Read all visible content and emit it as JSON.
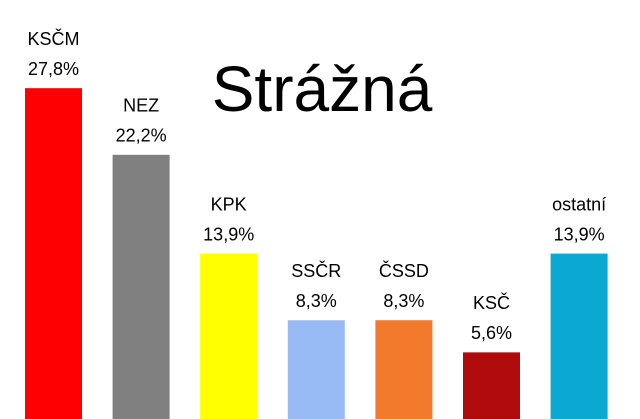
{
  "chart_data": {
    "type": "bar",
    "title": "Strážná",
    "categories": [
      "KSČM",
      "NEZ",
      "KPK",
      "SSČR",
      "ČSSD",
      "KSČ",
      "ostatní"
    ],
    "values": [
      27.8,
      22.2,
      13.9,
      8.3,
      8.3,
      5.6,
      13.9
    ],
    "value_labels": [
      "27,8%",
      "22,2%",
      "13,9%",
      "8,3%",
      "8,3%",
      "5,6%",
      "13,9%"
    ],
    "colors": [
      "#ff0000",
      "#808080",
      "#ffff00",
      "#99bbf5",
      "#f37a2c",
      "#b00b0b",
      "#0ba8d2"
    ]
  }
}
